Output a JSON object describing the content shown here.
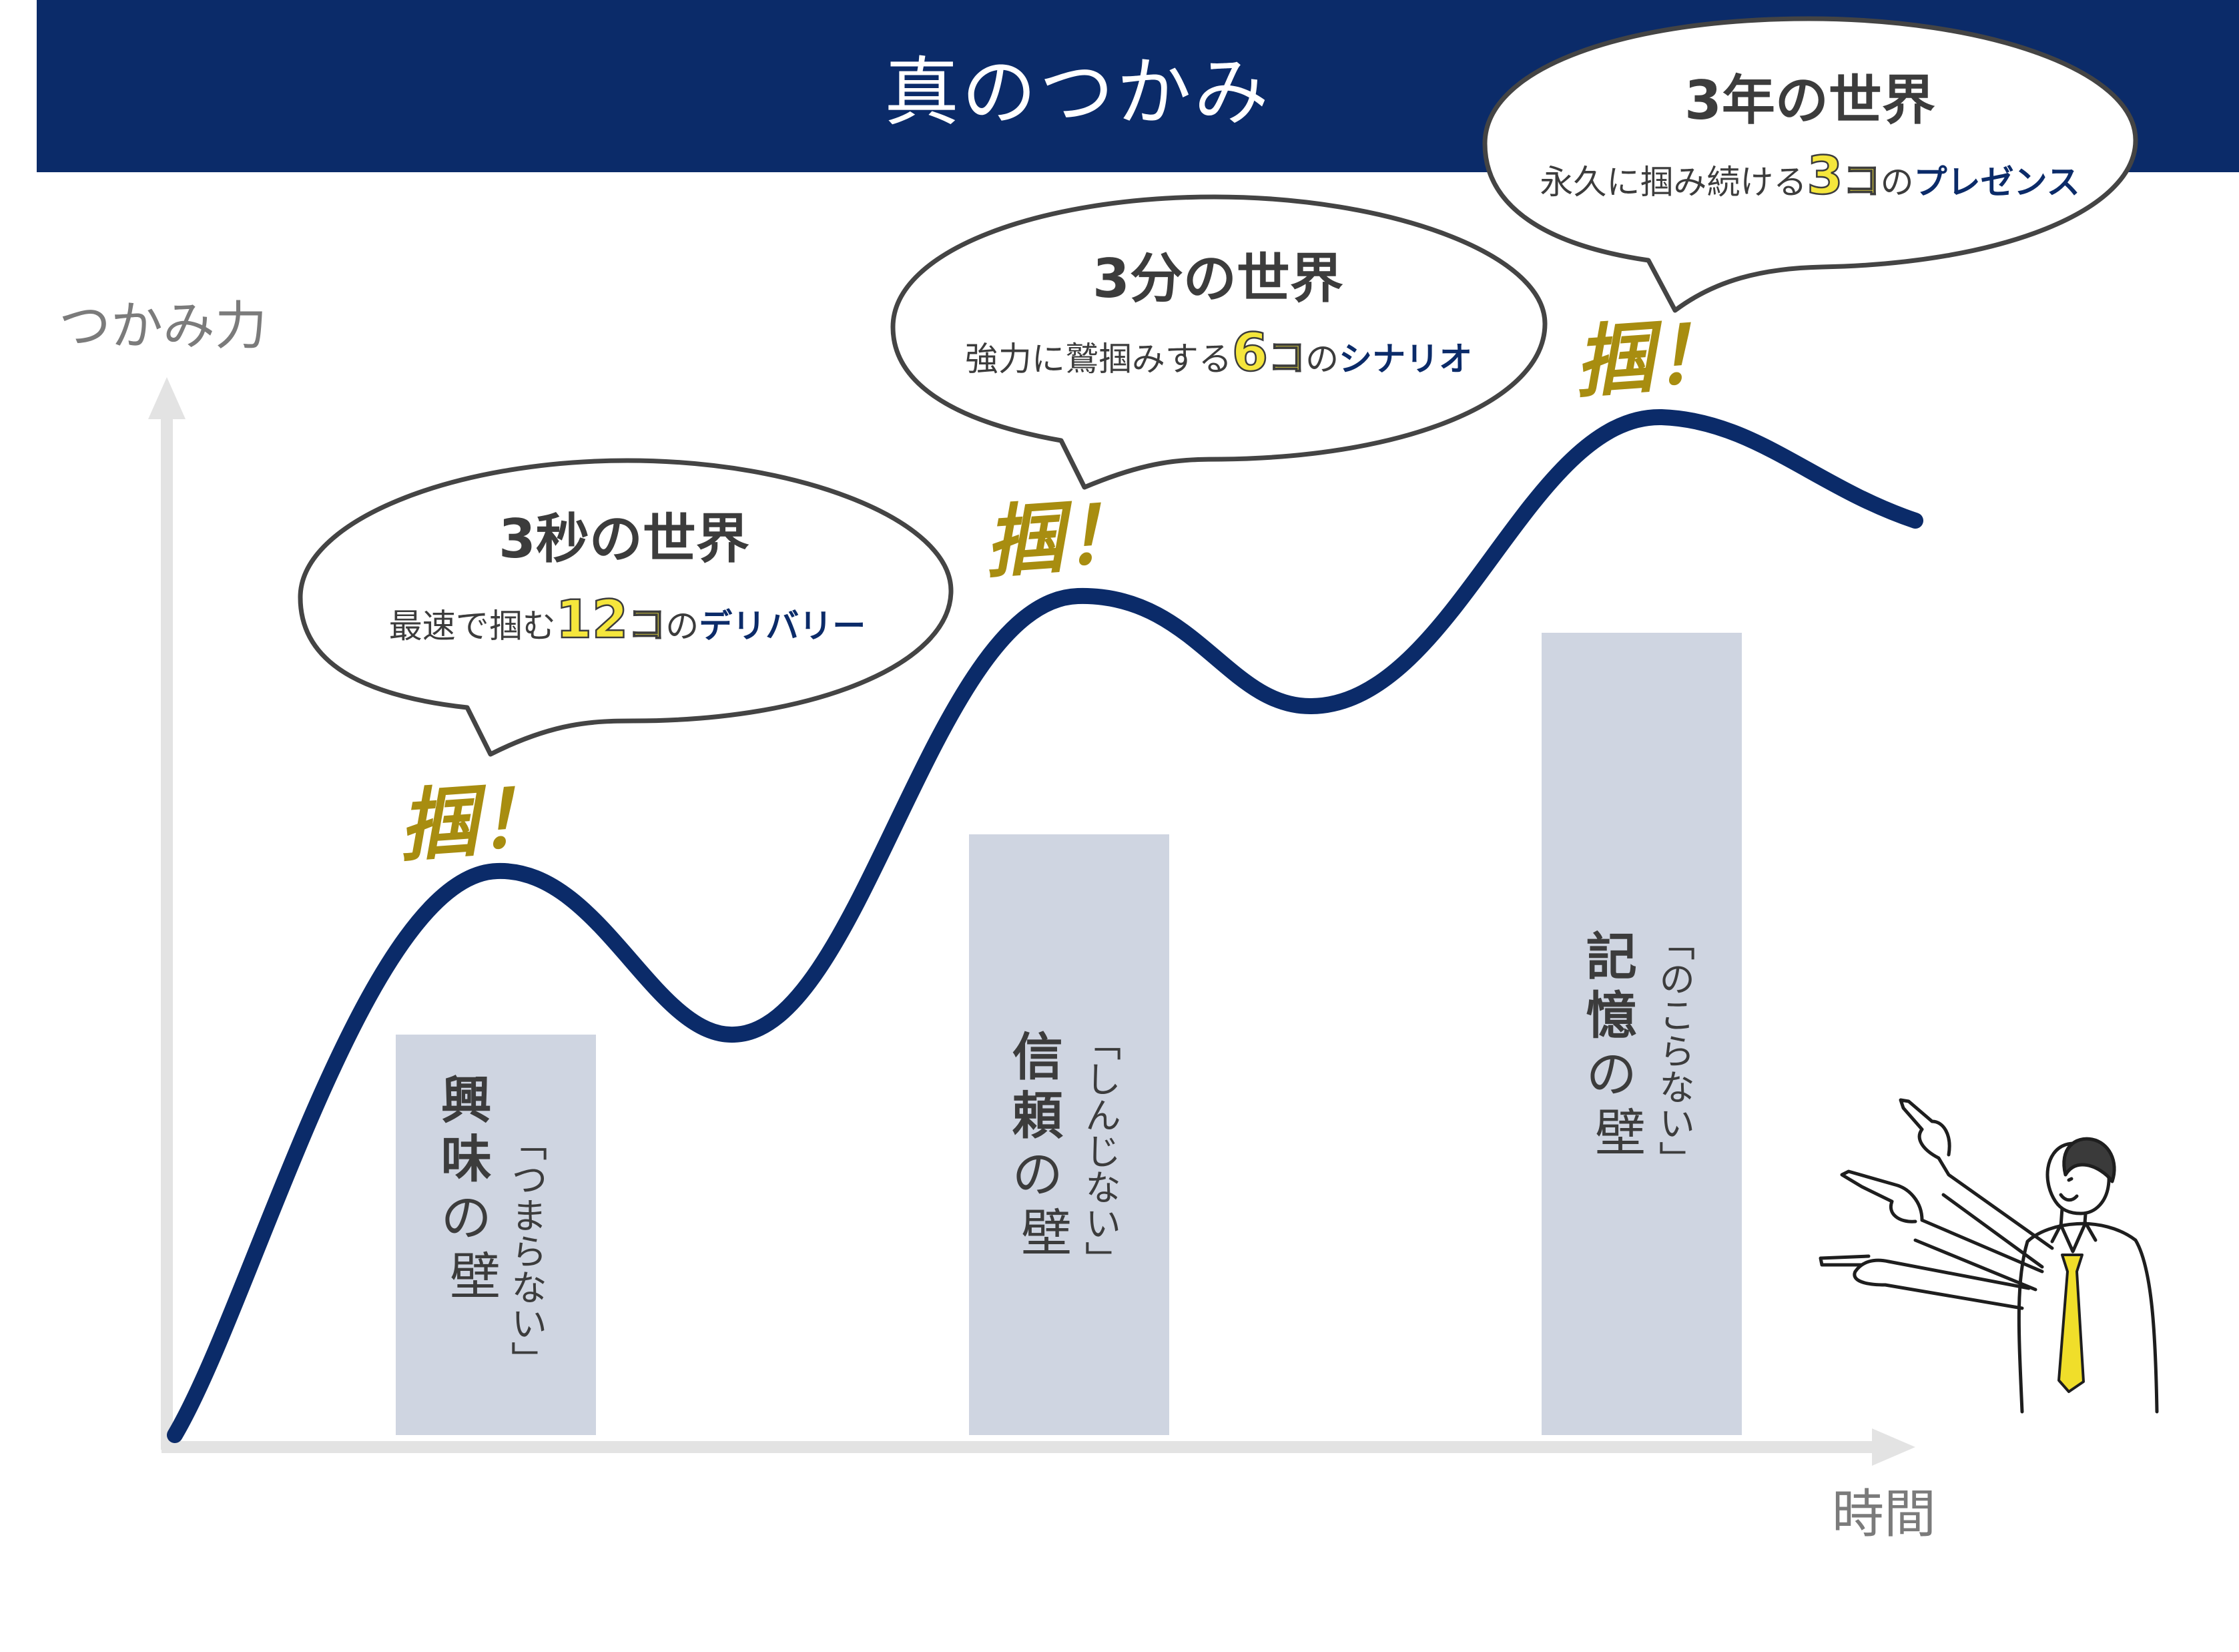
{
  "title": "真のつかみ",
  "axis": {
    "y_label": "つかみ力",
    "x_label": "時間"
  },
  "colors": {
    "navy": "#0b2b69",
    "gold": "#a88d10",
    "highlight_yellow": "#f5e63c",
    "wall_fill": "#cfd5e1",
    "axis_gray": "#e3e3e3",
    "label_gray": "#7b7b7b",
    "text_dark": "#3c3c3c"
  },
  "bubbles": [
    {
      "heading": "3秒の世界",
      "sub_pre": "最速で掴む",
      "number": "12",
      "unit": "コ",
      "particle": "の",
      "highlight": "デリバリー"
    },
    {
      "heading": "3分の世界",
      "sub_pre": "強力に鷲掴みする",
      "number": "6",
      "unit": "コ",
      "particle": "の",
      "highlight": "シナリオ"
    },
    {
      "heading": "3年の世界",
      "sub_pre": "永久に掴み続ける",
      "number": "3",
      "unit": "コ",
      "particle": "の",
      "highlight": "プレゼンス"
    }
  ],
  "exclaim": "掴！",
  "walls": [
    {
      "name_chars": [
        "興",
        "味",
        "の",
        "壁"
      ],
      "quote": "「つまらない」"
    },
    {
      "name_chars": [
        "信",
        "頼",
        "の",
        "壁"
      ],
      "quote": "「しんじない」"
    },
    {
      "name_chars": [
        "記",
        "憶",
        "の",
        "壁"
      ],
      "quote": "「のこらない」"
    }
  ],
  "figure": {
    "icon": "presenter-pointing-icon"
  }
}
